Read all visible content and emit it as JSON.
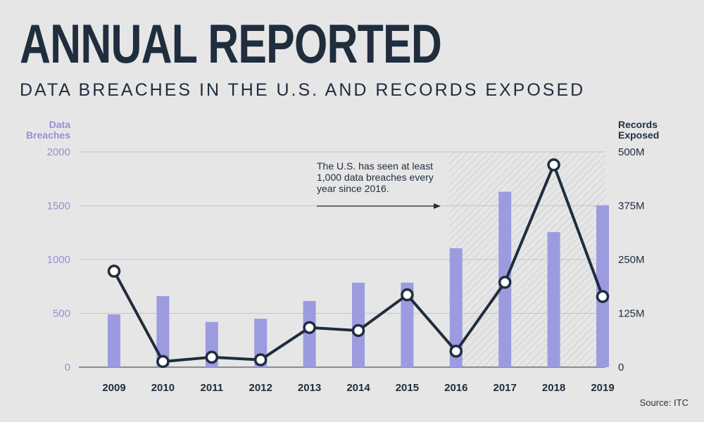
{
  "header": {
    "title": "ANNUAL REPORTED",
    "subtitle": "DATA BREACHES IN THE U.S. AND RECORDS EXPOSED"
  },
  "source": "Source: ITC",
  "colors": {
    "bar": "#9d9be0",
    "line": "#1f2d3d",
    "point_fill": "#ffffff",
    "grid": "#c4c4c4",
    "shade": "#bdbdbd",
    "left_axis": "#9391d6"
  },
  "chart_data": {
    "type": "bar+line",
    "categories": [
      "2009",
      "2010",
      "2011",
      "2012",
      "2013",
      "2014",
      "2015",
      "2016",
      "2017",
      "2018",
      "2019"
    ],
    "series": [
      {
        "name": "Data Breaches",
        "type": "bar",
        "axis": "left",
        "values": [
          490,
          660,
          420,
          450,
          615,
          785,
          785,
          1105,
          1630,
          1255,
          1505
        ]
      },
      {
        "name": "Records Exposed",
        "type": "line",
        "axis": "right",
        "values": [
          223,
          13,
          23,
          17,
          92,
          85,
          168,
          37,
          197,
          470,
          164
        ]
      }
    ],
    "left_axis": {
      "label_lines": [
        "Data",
        "Breaches"
      ],
      "ylim": [
        0,
        2000
      ],
      "ticks": [
        {
          "v": 0,
          "label": "0"
        },
        {
          "v": 500,
          "label": "500"
        },
        {
          "v": 1000,
          "label": "1000"
        },
        {
          "v": 1500,
          "label": "1500"
        },
        {
          "v": 2000,
          "label": "2000"
        }
      ]
    },
    "right_axis": {
      "label_lines": [
        "Records",
        "Exposed"
      ],
      "ylim": [
        0,
        500
      ],
      "ticks": [
        {
          "v": 0,
          "label": "0"
        },
        {
          "v": 125,
          "label": "125M"
        },
        {
          "v": 250,
          "label": "250M"
        },
        {
          "v": 375,
          "label": "375M"
        },
        {
          "v": 500,
          "label": "500M"
        }
      ]
    },
    "highlight": {
      "from": "2016",
      "to": "2019"
    },
    "annotation": {
      "lines": [
        "The U.S. has seen at least",
        "1,000 data breaches every",
        "year since 2016."
      ]
    },
    "grid": true
  }
}
